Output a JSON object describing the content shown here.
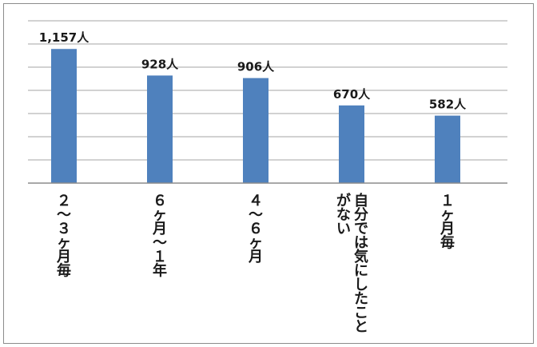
{
  "chart_data": {
    "type": "bar",
    "categories": [
      [
        "２",
        "〜",
        "３",
        "ヶ",
        "月",
        "毎"
      ],
      [
        "６",
        "ヶ",
        "月",
        "〜",
        "１",
        "年"
      ],
      [
        "４",
        "〜",
        "６",
        "ヶ",
        "月"
      ],
      [
        "自分では気にしたこと",
        "がない"
      ],
      [
        "１",
        "ヶ",
        "月",
        "毎"
      ]
    ],
    "values": [
      1157,
      928,
      906,
      670,
      582
    ],
    "value_labels": [
      "1,157人",
      "928人",
      "906人",
      "670人",
      "582人"
    ],
    "ylim": [
      0,
      1400
    ],
    "grid": true,
    "legend": "none",
    "bar_color": "#4f81bd",
    "grid_color": "#a6a6a6",
    "axis_color": "#8c8c8c"
  }
}
